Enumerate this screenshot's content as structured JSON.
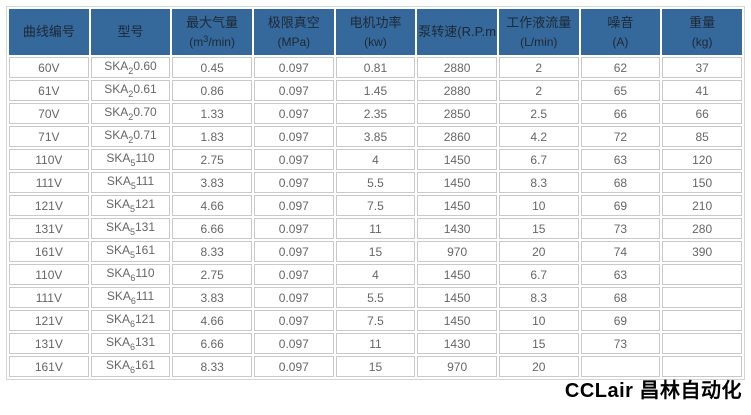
{
  "colors": {
    "header_bg": "#35689B",
    "header_text": "#1D2935",
    "cell_border": "#C9C9C9",
    "outer_border": "#D5D5D5",
    "data_text": "#666666",
    "watermark_text": "#000000",
    "page_bg": "#FFFFFF"
  },
  "watermark": {
    "text": "CCLair 昌林自动化"
  },
  "table": {
    "columns": [
      {
        "key": "curve",
        "title": "曲线编号"
      },
      {
        "key": "model",
        "title": "型号"
      },
      {
        "key": "max_air",
        "title": "最大气量",
        "unit_parts": {
          "prefix": "(m",
          "sup": "3",
          "suffix": "/min)"
        }
      },
      {
        "key": "vacuum",
        "title": "极限真空",
        "unit": "(MPa)"
      },
      {
        "key": "motor_power",
        "title": "电机功率",
        "unit": "(kw)"
      },
      {
        "key": "pump_speed",
        "title": "泵转速(R.P.m)"
      },
      {
        "key": "liquid_flow",
        "title": "工作液流量",
        "unit": "(L/min)"
      },
      {
        "key": "noise",
        "title": "噪音",
        "unit": "(A)"
      },
      {
        "key": "weight",
        "title": "重量",
        "unit": "(kg)"
      }
    ],
    "rows": [
      {
        "curve": "60V",
        "model": {
          "prefix": "SKA",
          "sub": "2",
          "suffix": "0.60"
        },
        "values": [
          "0.45",
          "0.097",
          "0.81",
          "2880",
          "2",
          "62",
          "37"
        ]
      },
      {
        "curve": "61V",
        "model": {
          "prefix": "SKA",
          "sub": "2",
          "suffix": "0.61"
        },
        "values": [
          "0.86",
          "0.097",
          "1.45",
          "2880",
          "2",
          "65",
          "41"
        ]
      },
      {
        "curve": "70V",
        "model": {
          "prefix": "SKA",
          "sub": "2",
          "suffix": "0.70"
        },
        "values": [
          "1.33",
          "0.097",
          "2.35",
          "2850",
          "2.5",
          "66",
          "66"
        ]
      },
      {
        "curve": "71V",
        "model": {
          "prefix": "SKA",
          "sub": "2",
          "suffix": "0.71"
        },
        "values": [
          "1.83",
          "0.097",
          "3.85",
          "2860",
          "4.2",
          "72",
          "85"
        ]
      },
      {
        "curve": "110V",
        "model": {
          "prefix": "SKA",
          "sub": "5",
          "suffix": "110"
        },
        "values": [
          "2.75",
          "0.097",
          "4",
          "1450",
          "6.7",
          "63",
          "120"
        ]
      },
      {
        "curve": "111V",
        "model": {
          "prefix": "SKA",
          "sub": "5",
          "suffix": "111"
        },
        "values": [
          "3.83",
          "0.097",
          "5.5",
          "1450",
          "8.3",
          "68",
          "150"
        ]
      },
      {
        "curve": "121V",
        "model": {
          "prefix": "SKA",
          "sub": "5",
          "suffix": "121"
        },
        "values": [
          "4.66",
          "0.097",
          "7.5",
          "1450",
          "10",
          "69",
          "210"
        ]
      },
      {
        "curve": "131V",
        "model": {
          "prefix": "SKA",
          "sub": "5",
          "suffix": "131"
        },
        "values": [
          "6.66",
          "0.097",
          "11",
          "1430",
          "15",
          "73",
          "280"
        ]
      },
      {
        "curve": "161V",
        "model": {
          "prefix": "SKA",
          "sub": "5",
          "suffix": "161"
        },
        "values": [
          "8.33",
          "0.097",
          "15",
          "970",
          "20",
          "74",
          "390"
        ]
      },
      {
        "curve": "110V",
        "model": {
          "prefix": "SKA",
          "sub": "6",
          "suffix": "110"
        },
        "values": [
          "2.75",
          "0.097",
          "4",
          "1450",
          "6.7",
          "63",
          ""
        ]
      },
      {
        "curve": "111V",
        "model": {
          "prefix": "SKA",
          "sub": "6",
          "suffix": "111"
        },
        "values": [
          "3.83",
          "0.097",
          "5.5",
          "1450",
          "8.3",
          "68",
          ""
        ]
      },
      {
        "curve": "121V",
        "model": {
          "prefix": "SKA",
          "sub": "6",
          "suffix": "121"
        },
        "values": [
          "4.66",
          "0.097",
          "7.5",
          "1450",
          "10",
          "69",
          ""
        ]
      },
      {
        "curve": "131V",
        "model": {
          "prefix": "SKA",
          "sub": "6",
          "suffix": "131"
        },
        "values": [
          "6.66",
          "0.097",
          "11",
          "1430",
          "15",
          "73",
          ""
        ]
      },
      {
        "curve": "161V",
        "model": {
          "prefix": "SKA",
          "sub": "6",
          "suffix": "161"
        },
        "values": [
          "8.33",
          "0.097",
          "15",
          "970",
          "20",
          "",
          ""
        ]
      }
    ]
  }
}
